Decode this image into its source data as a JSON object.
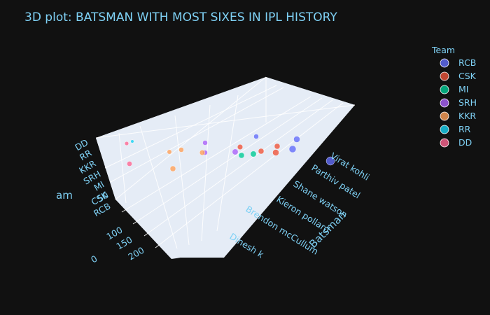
{
  "chart_data": {
    "type": "scatter",
    "dimensions": "3d",
    "title": "3D plot: BATSMAN WITH MOST SIXES IN IPL HISTORY",
    "axes": {
      "team_axis_title": "am",
      "team_ticks": [
        "RCB",
        "CSK",
        "MI",
        "SRH",
        "KKR",
        "RR",
        "DD"
      ],
      "sixes_ticks": [
        "50",
        "100",
        "150",
        "200",
        "0"
      ],
      "batsman_axis_title": "Batsman",
      "batsman_ticks": [
        "Virat kohli",
        "Parthiv patel",
        "Shane watson",
        "Kieron pollard",
        "Brendon mcCullum",
        "Dinesh k"
      ]
    },
    "legend": {
      "title": "Team",
      "placement": "right",
      "items": [
        {
          "label": "RCB",
          "color": "#636efa"
        },
        {
          "label": "CSK",
          "color": "#ef553b"
        },
        {
          "label": "MI",
          "color": "#00cc96"
        },
        {
          "label": "SRH",
          "color": "#ab63fa"
        },
        {
          "label": "KKR",
          "color": "#ffa15a"
        },
        {
          "label": "RR",
          "color": "#19d3f3"
        },
        {
          "label": "DD",
          "color": "#ff6692"
        }
      ]
    },
    "series": [
      {
        "name": "RCB",
        "color": "#636efa",
        "points": [
          {
            "team": "RCB",
            "sixes": 230
          },
          {
            "team": "RCB",
            "sixes": 110
          },
          {
            "team": "RCB",
            "sixes": 75
          },
          {
            "team": "RCB",
            "sixes": 130
          }
        ]
      },
      {
        "name": "CSK",
        "color": "#ef553b",
        "points": [
          {
            "team": "CSK",
            "sixes": 80
          },
          {
            "team": "CSK",
            "sixes": 90
          },
          {
            "team": "CSK",
            "sixes": 100
          },
          {
            "team": "CSK",
            "sixes": 75
          }
        ]
      },
      {
        "name": "MI",
        "color": "#00cc96",
        "points": [
          {
            "team": "MI",
            "sixes": 150
          },
          {
            "team": "MI",
            "sixes": 120
          }
        ]
      },
      {
        "name": "SRH",
        "color": "#ab63fa",
        "points": [
          {
            "team": "SRH",
            "sixes": 110
          },
          {
            "team": "SRH",
            "sixes": 80
          },
          {
            "team": "SRH",
            "sixes": 70
          }
        ]
      },
      {
        "name": "KKR",
        "color": "#ffa15a",
        "points": [
          {
            "team": "KKR",
            "sixes": 80
          },
          {
            "team": "KKR",
            "sixes": 75
          },
          {
            "team": "KKR",
            "sixes": 65
          },
          {
            "team": "KKR",
            "sixes": 80
          }
        ]
      },
      {
        "name": "RR",
        "color": "#19d3f3",
        "points": [
          {
            "team": "RR",
            "sixes": 50
          }
        ]
      },
      {
        "name": "DD",
        "color": "#ff6692",
        "points": [
          {
            "team": "DD",
            "sixes": 55
          },
          {
            "team": "DD",
            "sixes": 85
          }
        ]
      }
    ]
  }
}
